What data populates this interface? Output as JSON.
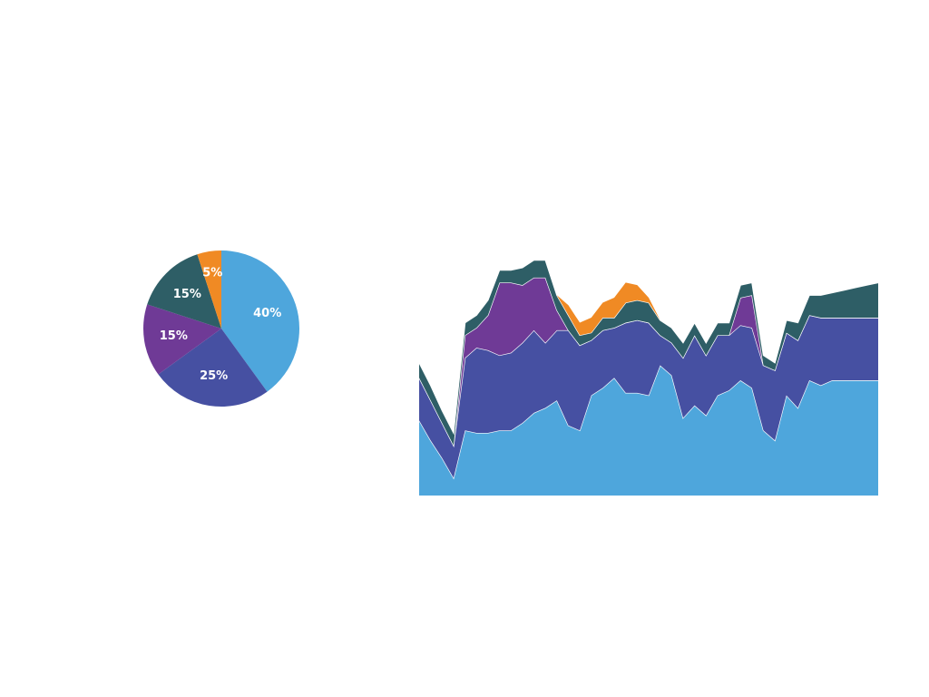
{
  "chart_data": [
    {
      "type": "pie",
      "start_angle_deg": 0,
      "direction": "clockwise",
      "slices": [
        {
          "label": "40%",
          "value": 40,
          "color": "#4EA6DC"
        },
        {
          "label": "25%",
          "value": 25,
          "color": "#4650A2"
        },
        {
          "label": "15%",
          "value": 15,
          "color": "#6F3A96"
        },
        {
          "label": "15%",
          "value": 15,
          "color": "#2E5E66"
        },
        {
          "label": "5%",
          "value": 5,
          "color": "#F08A24"
        }
      ]
    },
    {
      "type": "area",
      "stacked": true,
      "ylim": [
        0,
        100
      ],
      "grid": false,
      "x": [
        0,
        1,
        2,
        3,
        4,
        5,
        6,
        7,
        8,
        9,
        10,
        11,
        12,
        13,
        14,
        15,
        16,
        17,
        18,
        19,
        20,
        21,
        22,
        23,
        24,
        25,
        26,
        27,
        28,
        29,
        30,
        31,
        32,
        33,
        34,
        35,
        36,
        37,
        38,
        39,
        40
      ],
      "series": [
        {
          "color": "#4EA6DC",
          "values": [
            30,
            22,
            15,
            7,
            26,
            25,
            25,
            26,
            26,
            29,
            33,
            35,
            38,
            28,
            26,
            40,
            43,
            47,
            41,
            41,
            40,
            52,
            48,
            31,
            36,
            32,
            40,
            42,
            46,
            43,
            26,
            22,
            40,
            35,
            46,
            44,
            46,
            46,
            46,
            46,
            46
          ]
        },
        {
          "color": "#4650A2",
          "values": [
            17,
            16,
            14,
            13,
            29,
            34,
            33,
            30,
            31,
            32,
            33,
            26,
            28,
            38,
            34,
            22,
            23,
            20,
            28,
            29,
            29,
            12,
            13,
            24,
            28,
            24,
            24,
            22,
            22,
            24,
            26,
            28,
            25,
            27,
            26,
            27,
            25,
            25,
            25,
            25,
            25
          ]
        },
        {
          "color": "#6F3A96",
          "values": [
            0,
            0,
            0,
            0,
            9,
            8,
            14,
            29,
            28,
            23,
            21,
            26,
            8,
            0,
            0,
            0,
            0,
            0,
            0,
            0,
            0,
            0,
            0,
            0,
            0,
            0,
            0,
            0,
            11,
            13,
            0,
            0,
            0,
            0,
            0,
            0,
            0,
            0,
            0,
            0,
            0
          ]
        },
        {
          "color": "#2E5E66",
          "values": [
            6,
            6,
            5,
            5,
            5,
            5,
            6,
            5,
            5,
            7,
            7,
            7,
            6,
            6,
            4,
            3,
            5,
            4,
            8,
            8,
            8,
            6,
            6,
            6,
            5,
            5,
            5,
            5,
            5,
            5,
            4,
            3,
            5,
            7,
            8,
            9,
            10,
            11,
            12,
            13,
            14
          ]
        },
        {
          "color": "#F08A24",
          "values": [
            0,
            0,
            0,
            0,
            0,
            0,
            0,
            0,
            0,
            0,
            0,
            0,
            0,
            4,
            5,
            6,
            6,
            8,
            8,
            6,
            2,
            0,
            0,
            0,
            0,
            0,
            0,
            0,
            0,
            0,
            0,
            0,
            0,
            0,
            0,
            0,
            0,
            0,
            0,
            0,
            0
          ]
        }
      ]
    }
  ]
}
